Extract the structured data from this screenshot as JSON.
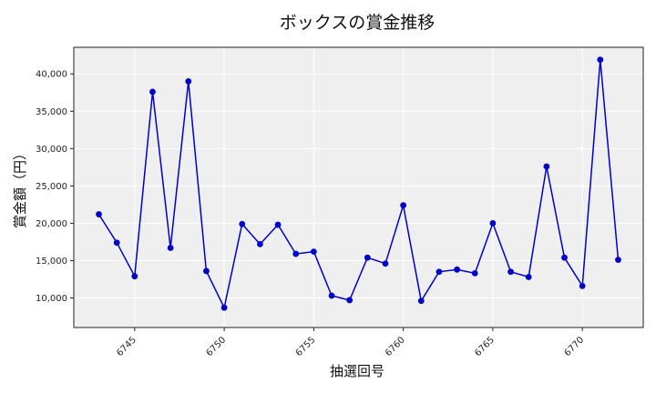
{
  "chart_data": {
    "type": "line",
    "title": "ボックスの賞金推移",
    "xlabel": "抽選回号",
    "ylabel": "賞金額（円）",
    "x": [
      6743,
      6744,
      6745,
      6746,
      6747,
      6748,
      6749,
      6750,
      6751,
      6752,
      6753,
      6754,
      6755,
      6756,
      6757,
      6758,
      6759,
      6760,
      6761,
      6762,
      6763,
      6764,
      6765,
      6766,
      6767,
      6768,
      6769,
      6770,
      6771,
      6772
    ],
    "series": [
      {
        "values": [
          21200,
          17400,
          12900,
          37600,
          16700,
          39000,
          13600,
          8700,
          19900,
          17200,
          19800,
          15900,
          16200,
          10300,
          9700,
          15400,
          14600,
          22400,
          9600,
          13500,
          13800,
          13300,
          20000,
          13500,
          12800,
          27600,
          15400,
          11600,
          41900,
          15100
        ],
        "color": "#0000cc"
      }
    ],
    "x_ticks": [
      6745,
      6750,
      6755,
      6760,
      6765,
      6770
    ],
    "x_tick_labels": [
      "6745",
      "6750",
      "6755",
      "6760",
      "6765",
      "6770"
    ],
    "y_ticks": [
      10000,
      15000,
      20000,
      25000,
      30000,
      35000,
      40000
    ],
    "y_tick_labels": [
      "10,000",
      "15,000",
      "20,000",
      "25,000",
      "30,000",
      "35,000",
      "40,000"
    ],
    "xlim": [
      6741.6,
      6773.4
    ],
    "ylim": [
      6040,
      43560
    ],
    "grid": true,
    "background": "#efefef",
    "line_color": "#0000cc"
  }
}
